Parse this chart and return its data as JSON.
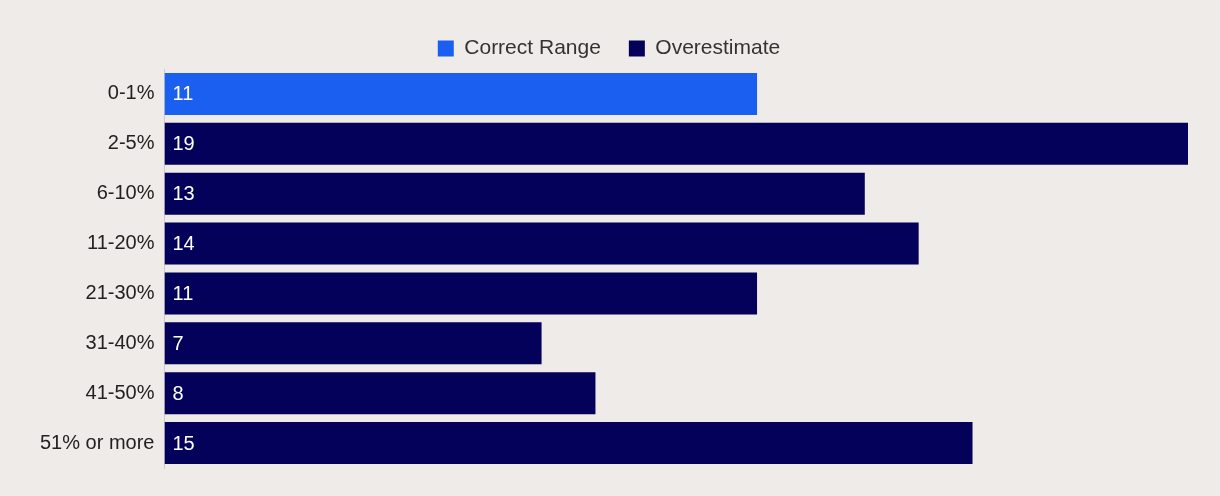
{
  "chart_data": {
    "type": "bar",
    "orientation": "horizontal",
    "stacked": true,
    "categories": [
      "0-1%",
      "2-5%",
      "6-10%",
      "11-20%",
      "21-30%",
      "31-40%",
      "41-50%",
      "51% or more"
    ],
    "series": [
      {
        "name": "Correct Range",
        "color": "#1b5ff0",
        "values": [
          11,
          null,
          null,
          null,
          null,
          null,
          null,
          null
        ]
      },
      {
        "name": "Overestimate",
        "color": "#03015a",
        "values": [
          null,
          19,
          13,
          14,
          11,
          7,
          8,
          15
        ]
      }
    ],
    "data_labels": true,
    "legend": "top",
    "tick_labels": "y"
  }
}
